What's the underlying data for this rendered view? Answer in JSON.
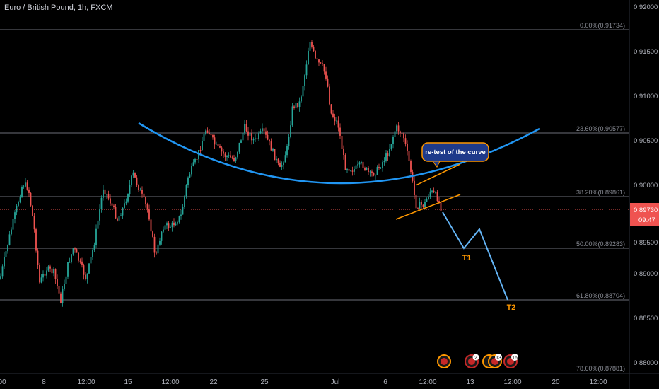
{
  "header": {
    "title": "Euro / British Pound, 1h, FXCM"
  },
  "price_axis": {
    "labels": [
      "0.92000",
      "0.91500",
      "0.91000",
      "0.90500",
      "0.90000",
      "0.89500",
      "0.89000",
      "0.88500",
      "0.88000"
    ],
    "current_price": "0.89730",
    "countdown": "09:47"
  },
  "time_axis": {
    "labels": [
      "8",
      "12:00",
      "15",
      "12:00",
      "22",
      "25",
      "Jul",
      "6",
      "12:00",
      "13",
      "12:00",
      "20",
      "12:00"
    ]
  },
  "fib_levels": [
    {
      "label": "0.00%(0.91734)"
    },
    {
      "label": "23.60%(0.90577)"
    },
    {
      "label": "38.20%(0.89861)"
    },
    {
      "label": "50.00%(0.89283)"
    },
    {
      "label": "61.80%(0.88704)"
    },
    {
      "label": "78.60%(0.87881)"
    }
  ],
  "annotations": {
    "callout": "re-test of the curve",
    "t1": "T1",
    "t2": "T2"
  },
  "event_badges": [
    "",
    "2",
    "13",
    "16"
  ],
  "colors": {
    "up": "#26a69a",
    "down": "#ef5350",
    "curve": "#2196f3",
    "trendline": "#ff9800",
    "projection": "#64b5f6",
    "price_tag": "#ef5350",
    "callout_bg": "#1e3a8a",
    "callout_border": "#ff9800"
  }
}
